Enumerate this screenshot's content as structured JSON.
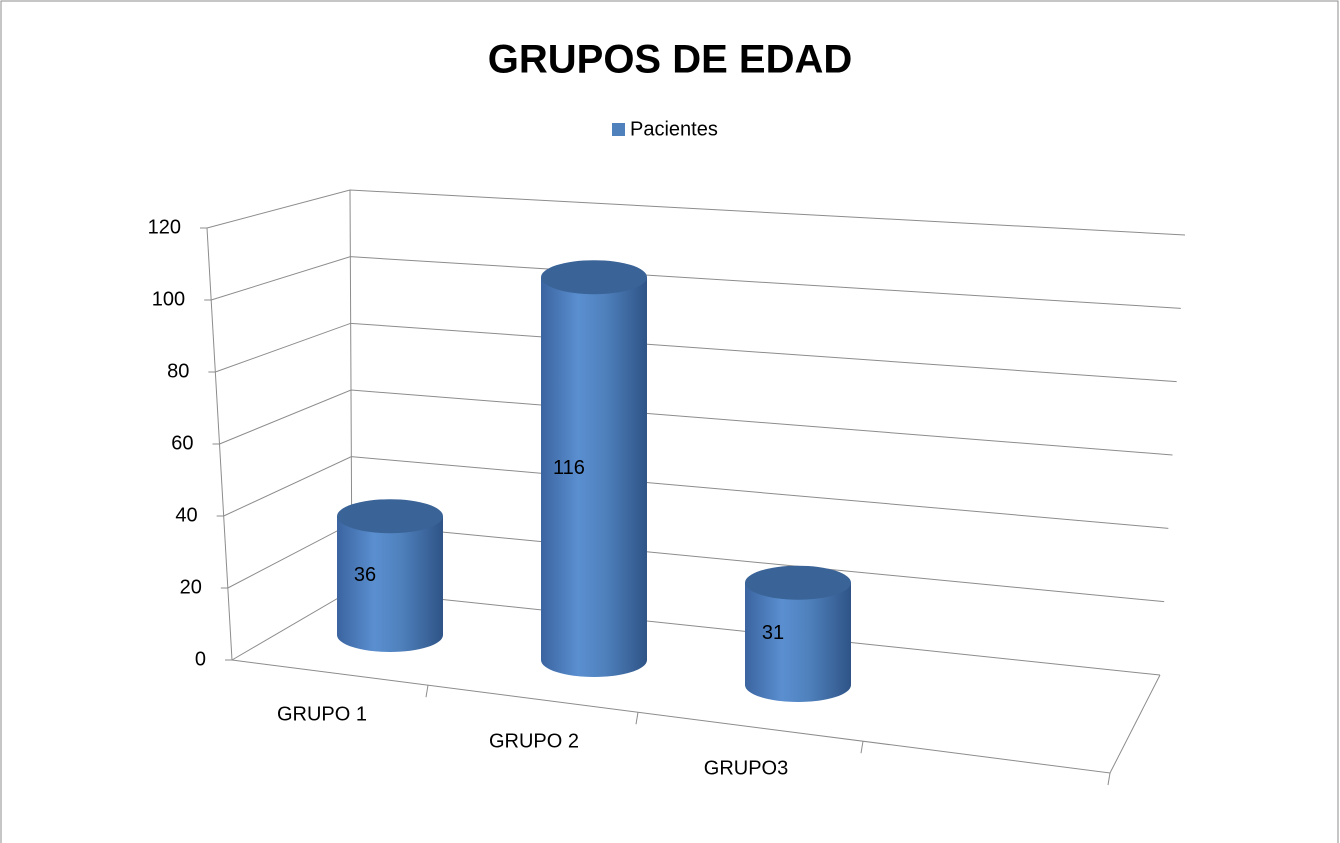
{
  "chart_data": {
    "type": "bar",
    "title": "GRUPOS DE EDAD",
    "categories": [
      "GRUPO 1",
      "GRUPO 2",
      "GRUPO3"
    ],
    "series": [
      {
        "name": "Pacientes",
        "color": "#4f81bd",
        "values": [
          36,
          116,
          31
        ]
      }
    ],
    "ylim": [
      0,
      120
    ],
    "yticks": [
      0,
      20,
      40,
      60,
      80,
      100,
      120
    ],
    "grid": true
  }
}
